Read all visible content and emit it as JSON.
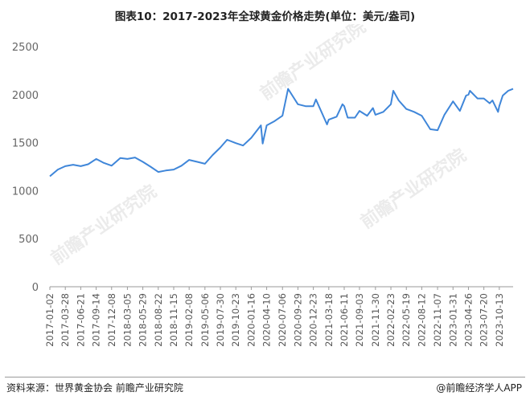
{
  "title": "图表10：2017-2023年全球黄金价格走势(单位：美元/盎司)",
  "source": "资料来源：世界黄金协会 前瞻产业研究院",
  "credit": "@前瞻经济学人APP",
  "watermark_text": "前瞻产业研究院",
  "colors": {
    "line": "#3f86d9",
    "axis": "#9a9a9a",
    "grid": "#e6e6e6",
    "watermark": "#dcdcdc"
  },
  "chart_data": {
    "type": "line",
    "title": "图表10：2017-2023年全球黄金价格走势(单位：美元/盎司)",
    "xlabel": "",
    "ylabel": "",
    "ylim": [
      0,
      2500
    ],
    "yticks": [
      0,
      500,
      1000,
      1500,
      2000,
      2500
    ],
    "grid": false,
    "legend": "none",
    "x_tick_labels": [
      "2017-01-02",
      "2017-03-28",
      "2017-06-21",
      "2017-09-14",
      "2017-12-08",
      "2018-03-05",
      "2018-05-29",
      "2018-08-22",
      "2018-11-15",
      "2019-02-08",
      "2019-05-06",
      "2019-07-30",
      "2019-10-23",
      "2020-01-16",
      "2020-04-10",
      "2020-07-06",
      "2020-09-29",
      "2020-12-23",
      "2021-03-18",
      "2021-06-11",
      "2021-09-03",
      "2021-11-30",
      "2022-02-23",
      "2022-05-19",
      "2022-08-12",
      "2022-11-07",
      "2023-01-31",
      "2023-04-26",
      "2023-07-20",
      "2023-10-13"
    ],
    "series": [
      {
        "name": "",
        "x": [
          "2017-01-02",
          "2017-02-15",
          "2017-03-28",
          "2017-05-10",
          "2017-06-21",
          "2017-08-01",
          "2017-09-14",
          "2017-10-25",
          "2017-12-08",
          "2018-01-25",
          "2018-03-05",
          "2018-04-16",
          "2018-05-29",
          "2018-07-10",
          "2018-08-22",
          "2018-10-02",
          "2018-11-15",
          "2018-12-28",
          "2019-02-08",
          "2019-03-25",
          "2019-05-06",
          "2019-06-17",
          "2019-07-30",
          "2019-09-05",
          "2019-10-23",
          "2019-12-02",
          "2020-01-16",
          "2020-03-09",
          "2020-03-19",
          "2020-04-10",
          "2020-05-20",
          "2020-07-06",
          "2020-08-06",
          "2020-09-29",
          "2020-11-10",
          "2020-12-23",
          "2021-01-06",
          "2021-03-08",
          "2021-03-18",
          "2021-04-30",
          "2021-06-01",
          "2021-06-11",
          "2021-06-30",
          "2021-08-09",
          "2021-09-03",
          "2021-10-15",
          "2021-11-16",
          "2021-11-30",
          "2022-01-12",
          "2022-02-23",
          "2022-03-08",
          "2022-04-07",
          "2022-05-19",
          "2022-07-01",
          "2022-08-12",
          "2022-09-28",
          "2022-11-07",
          "2022-12-15",
          "2023-01-31",
          "2023-03-10",
          "2023-04-13",
          "2023-04-26",
          "2023-05-04",
          "2023-06-15",
          "2023-07-20",
          "2023-08-21",
          "2023-09-05",
          "2023-10-06",
          "2023-10-13",
          "2023-11-01",
          "2023-12-01",
          "2023-12-28"
        ],
        "values": [
          1150,
          1220,
          1255,
          1270,
          1255,
          1275,
          1330,
          1290,
          1260,
          1340,
          1330,
          1345,
          1300,
          1250,
          1195,
          1210,
          1220,
          1260,
          1320,
          1300,
          1280,
          1370,
          1450,
          1530,
          1495,
          1470,
          1550,
          1680,
          1490,
          1680,
          1720,
          1780,
          2060,
          1900,
          1880,
          1880,
          1950,
          1690,
          1740,
          1770,
          1900,
          1880,
          1760,
          1760,
          1830,
          1780,
          1860,
          1790,
          1820,
          1900,
          2040,
          1940,
          1850,
          1820,
          1780,
          1640,
          1630,
          1790,
          1930,
          1830,
          1990,
          2000,
          2040,
          1960,
          1960,
          1910,
          1940,
          1820,
          1880,
          1990,
          2040,
          2060
        ]
      }
    ]
  }
}
